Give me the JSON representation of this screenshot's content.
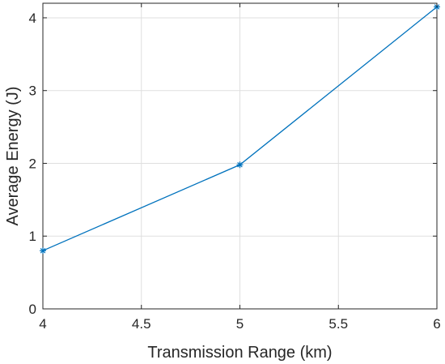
{
  "chart_data": {
    "type": "line",
    "xlabel": "Transmission Range (km)",
    "ylabel": "Average Energy (J)",
    "xlim": [
      4,
      6
    ],
    "ylim": [
      0,
      4.2
    ],
    "xticks": [
      4,
      4.5,
      5,
      5.5,
      6
    ],
    "yticks": [
      0,
      1,
      2,
      3,
      4
    ],
    "grid": true,
    "series": [
      {
        "x": [
          4,
          5,
          6
        ],
        "y": [
          0.8,
          1.98,
          4.15
        ],
        "color": "#0072BD",
        "marker": "asterisk"
      }
    ]
  }
}
